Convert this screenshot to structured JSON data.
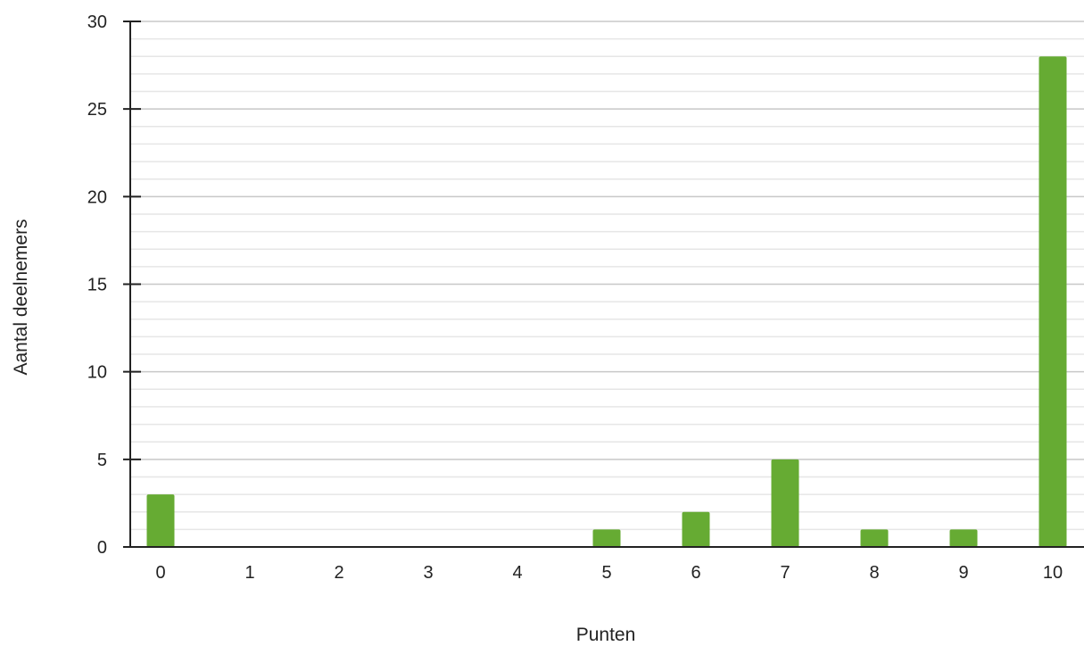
{
  "chart_data": {
    "type": "bar",
    "title": "",
    "xlabel": "Punten",
    "ylabel": "Aantal deelnemers",
    "categories": [
      "0",
      "1",
      "2",
      "3",
      "4",
      "5",
      "6",
      "7",
      "8",
      "9",
      "10"
    ],
    "values": [
      3,
      0,
      0,
      0,
      0,
      1,
      2,
      5,
      1,
      1,
      28
    ],
    "ylim": [
      0,
      30
    ],
    "yticks": [
      "0",
      "5",
      "10",
      "15",
      "20",
      "25",
      "30"
    ],
    "grid": true,
    "legend": "none",
    "bar_color": "#66ab33",
    "major_grid_color": "#c8c8c8",
    "minor_grid_color": "#e6e6e6",
    "axis_color": "#222222"
  }
}
